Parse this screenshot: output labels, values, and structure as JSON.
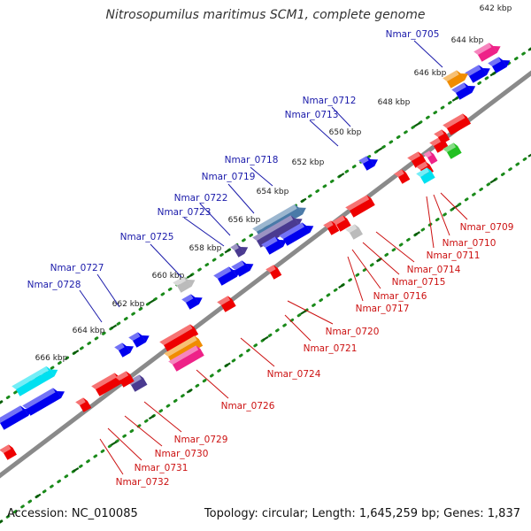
{
  "title": "Nitrosopumilus maritimus SCM1, complete genome",
  "footer": {
    "accession": "Accession: NC_010085",
    "summary": "Topology: circular; Length: 1,645,259 bp; Genes: 1,837"
  },
  "ticks": [
    "642 kbp",
    "644 kbp",
    "646 kbp",
    "648 kbp",
    "650 kbp",
    "652 kbp",
    "654 kbp",
    "656 kbp",
    "658 kbp",
    "660 kbp",
    "662 kbp",
    "664 kbp",
    "666 kbp"
  ],
  "labels_forward": [
    "Nmar_0705",
    "Nmar_0712",
    "Nmar_0713",
    "Nmar_0718",
    "Nmar_0719",
    "Nmar_0722",
    "Nmar_0723",
    "Nmar_0725",
    "Nmar_0727",
    "Nmar_0728"
  ],
  "labels_reverse": [
    "Nmar_0709",
    "Nmar_0710",
    "Nmar_0711",
    "Nmar_0714",
    "Nmar_0715",
    "Nmar_0716",
    "Nmar_0717",
    "Nmar_0720",
    "Nmar_0721",
    "Nmar_0724",
    "Nmar_0726",
    "Nmar_0729",
    "Nmar_0730",
    "Nmar_0731",
    "Nmar_0732"
  ],
  "colors": {
    "forward_label": "#1a1aaa",
    "reverse_label": "#cc1111",
    "cds_forward": "#0000ee",
    "cds_reverse": "#ee0000",
    "backbone": "#8a8a8a",
    "ruler_dots": "#1a8a1a",
    "ruler_ticks": "#0a5a0a",
    "orange": "#f08c00",
    "pink": "#ee2288",
    "cyan": "#00e0f0",
    "green": "#22c022",
    "steel": "#4a7aa8",
    "purple": "#4a3a90",
    "gray": "#bbbbbb"
  }
}
